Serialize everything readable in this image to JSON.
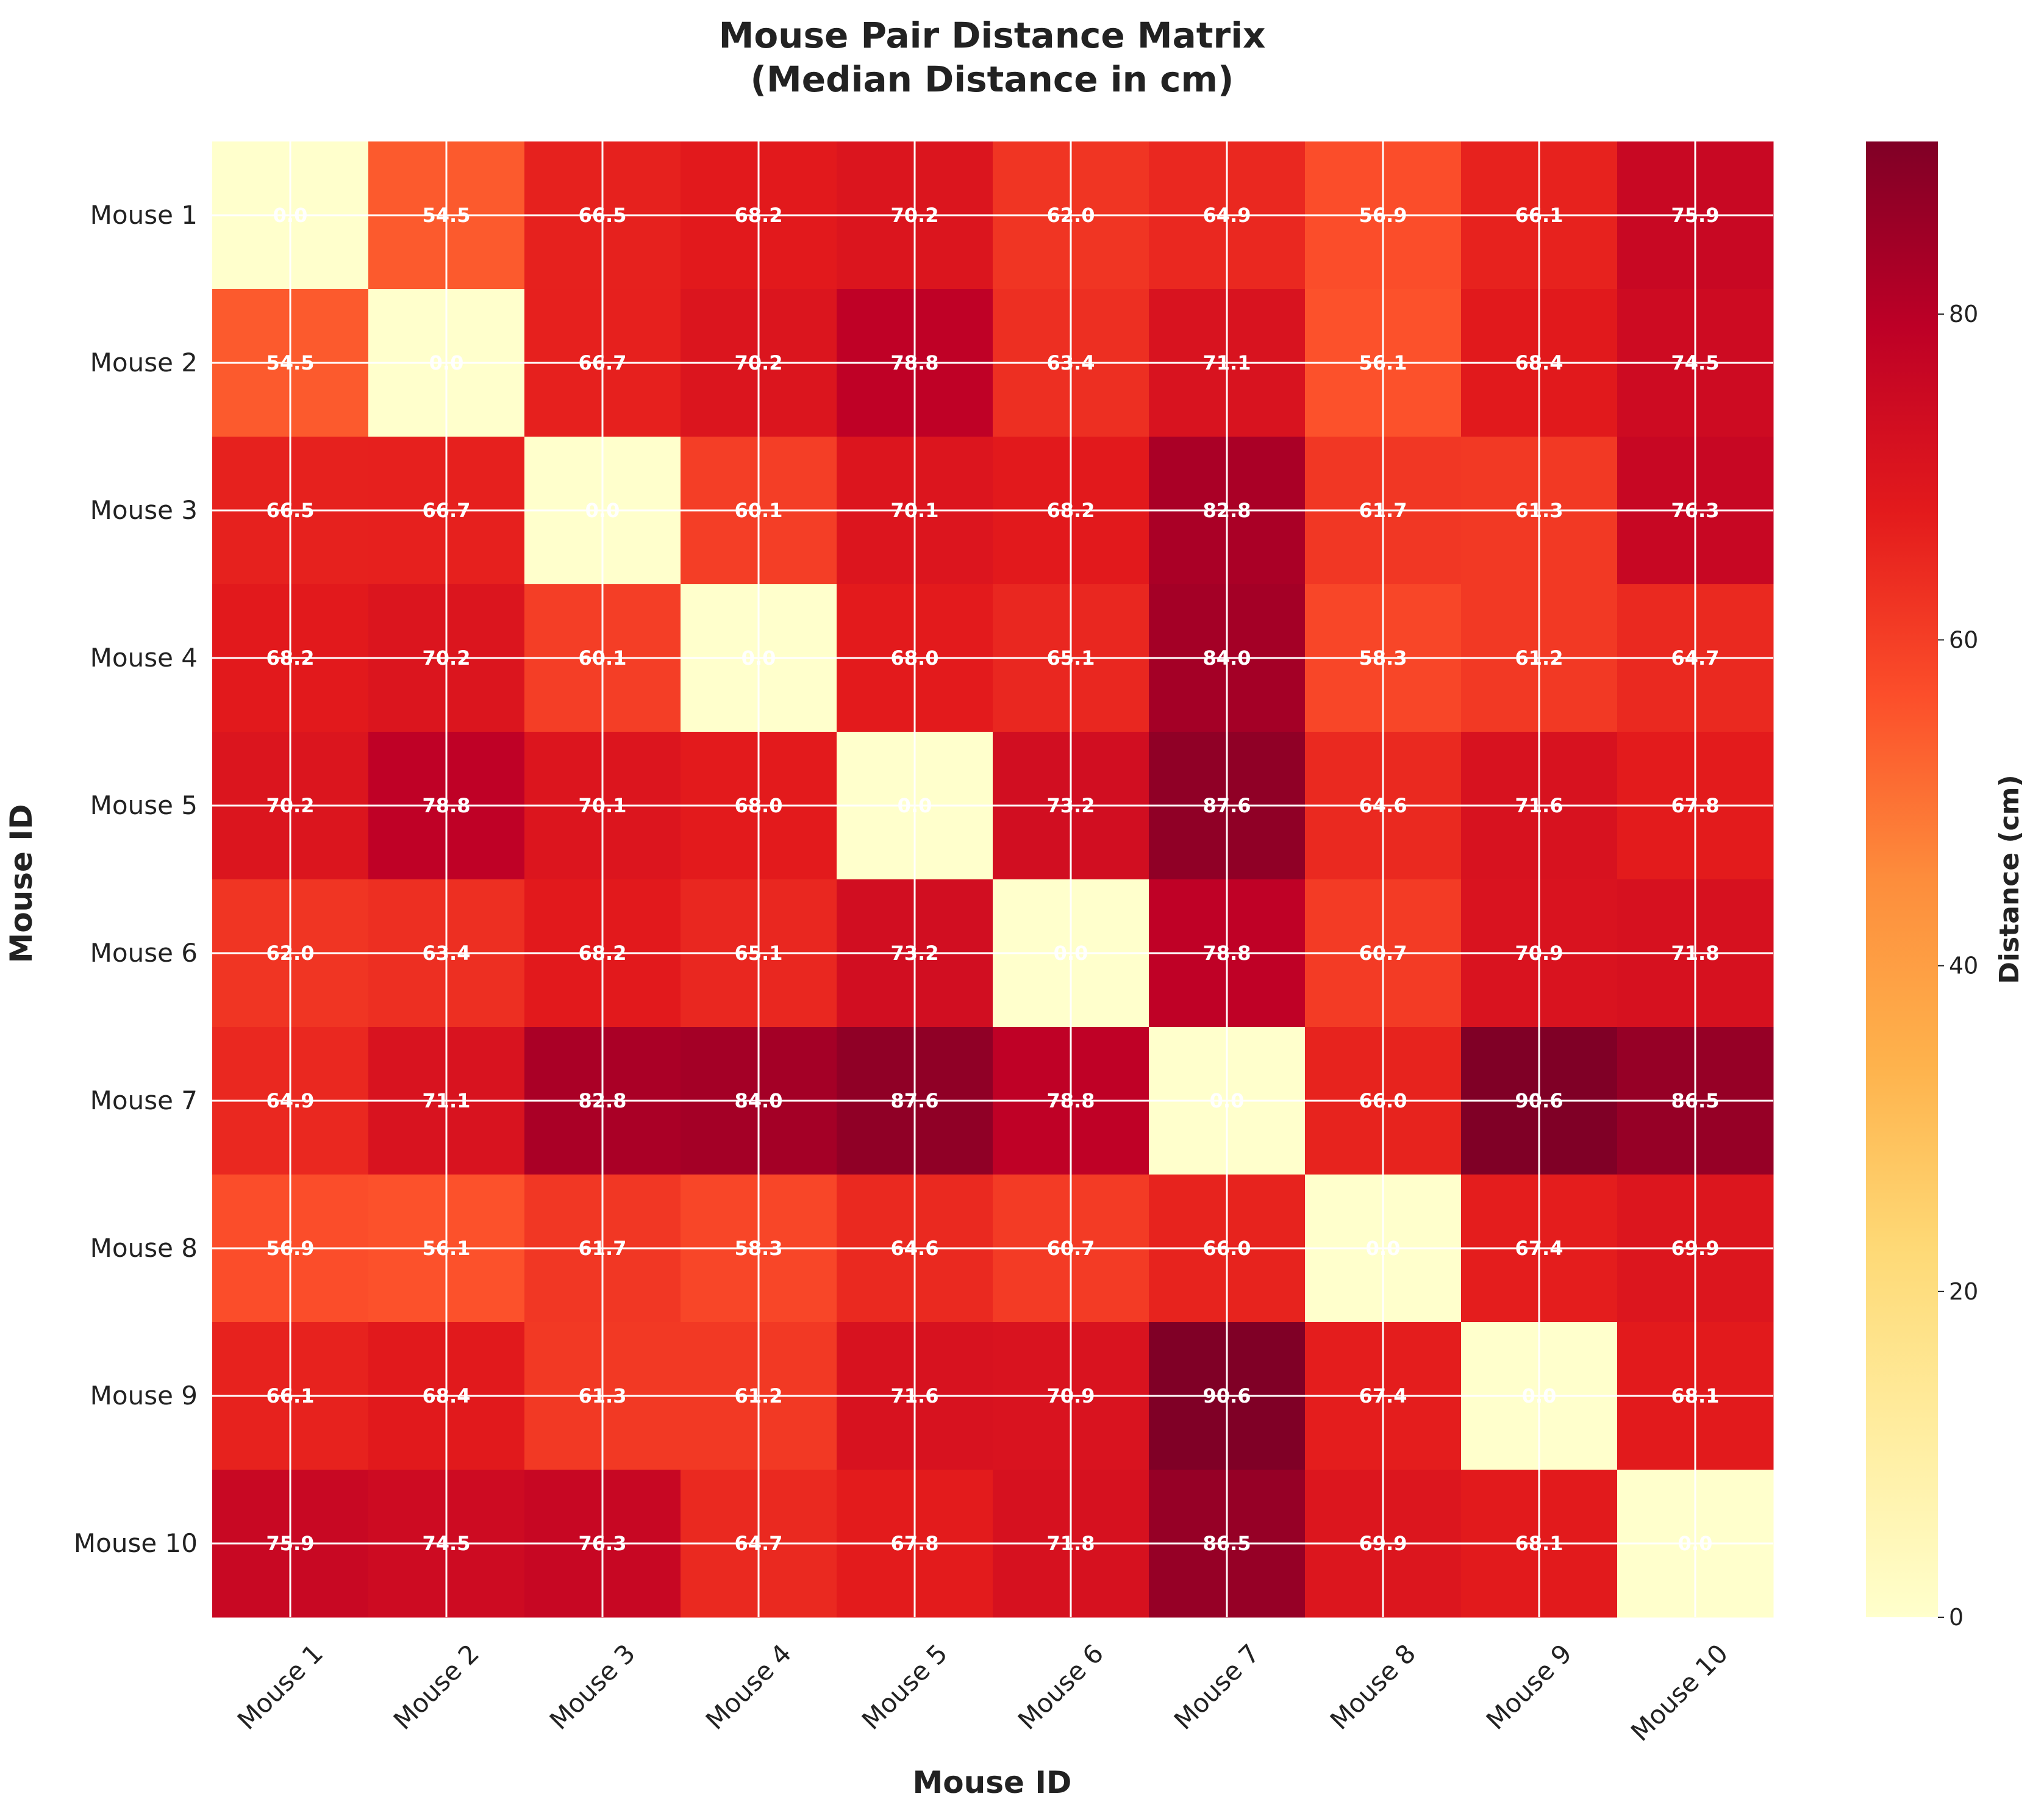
{
  "chart_data": {
    "type": "heatmap",
    "title": "Mouse Pair Distance Matrix",
    "subtitle": "(Median Distance in cm)",
    "xlabel": "Mouse ID",
    "ylabel": "Mouse ID",
    "colorbar_label": "Distance (cm)",
    "colormap": "YlOrRd",
    "vmin": 0,
    "vmax": 90.6,
    "colorbar_ticks": [
      0,
      20,
      40,
      60,
      80
    ],
    "grid": true,
    "x_categories": [
      "Mouse 1",
      "Mouse 2",
      "Mouse 3",
      "Mouse 4",
      "Mouse 5",
      "Mouse 6",
      "Mouse 7",
      "Mouse 8",
      "Mouse 9",
      "Mouse 10"
    ],
    "y_categories": [
      "Mouse 1",
      "Mouse 2",
      "Mouse 3",
      "Mouse 4",
      "Mouse 5",
      "Mouse 6",
      "Mouse 7",
      "Mouse 8",
      "Mouse 9",
      "Mouse 10"
    ],
    "values": [
      [
        0.0,
        54.5,
        66.5,
        68.2,
        70.2,
        62.0,
        64.9,
        56.9,
        66.1,
        75.9
      ],
      [
        54.5,
        0.0,
        66.7,
        70.2,
        78.8,
        63.4,
        71.1,
        56.1,
        68.4,
        74.5
      ],
      [
        66.5,
        66.7,
        0.0,
        60.1,
        70.1,
        68.2,
        82.8,
        61.7,
        61.3,
        76.3
      ],
      [
        68.2,
        70.2,
        60.1,
        0.0,
        68.0,
        65.1,
        84.0,
        58.3,
        61.2,
        64.7
      ],
      [
        70.2,
        78.8,
        70.1,
        68.0,
        0.0,
        73.2,
        87.6,
        64.6,
        71.6,
        67.8
      ],
      [
        62.0,
        63.4,
        68.2,
        65.1,
        73.2,
        0.0,
        78.8,
        60.7,
        70.9,
        71.8
      ],
      [
        64.9,
        71.1,
        82.8,
        84.0,
        87.6,
        78.8,
        0.0,
        66.0,
        90.6,
        86.5
      ],
      [
        56.9,
        56.1,
        61.7,
        58.3,
        64.6,
        60.7,
        66.0,
        0.0,
        67.4,
        69.9
      ],
      [
        66.1,
        68.4,
        61.3,
        61.2,
        71.6,
        70.9,
        90.6,
        67.4,
        0.0,
        68.1
      ],
      [
        75.9,
        74.5,
        76.3,
        64.7,
        67.8,
        71.8,
        86.5,
        69.9,
        68.1,
        0.0
      ]
    ]
  }
}
